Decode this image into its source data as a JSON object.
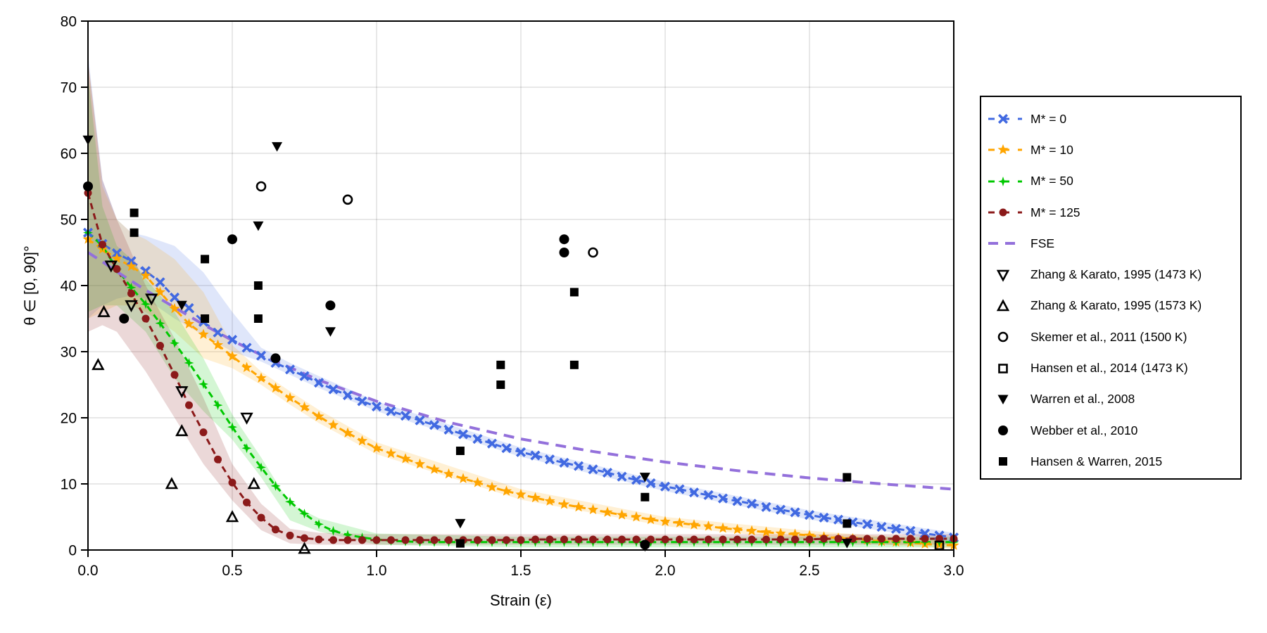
{
  "chart_data": {
    "type": "line",
    "xlabel": "Strain (ε)",
    "ylabel": "θ ∈ [0, 90]°",
    "xlim": [
      0,
      3
    ],
    "ylim": [
      0,
      80
    ],
    "xticks": [
      "0.0",
      "0.5",
      "1.0",
      "1.5",
      "2.0",
      "2.5",
      "3.0"
    ],
    "yticks": [
      "0",
      "10",
      "20",
      "30",
      "40",
      "50",
      "60",
      "70",
      "80"
    ],
    "grid": true,
    "legend_position": "right-outside",
    "model_x": [
      0,
      0.05,
      0.1,
      0.15,
      0.2,
      0.25,
      0.3,
      0.35,
      0.4,
      0.45,
      0.5,
      0.55,
      0.6,
      0.65,
      0.7,
      0.75,
      0.8,
      0.85,
      0.9,
      0.95,
      1.0,
      1.05,
      1.1,
      1.15,
      1.2,
      1.25,
      1.3,
      1.35,
      1.4,
      1.45,
      1.5,
      1.55,
      1.6,
      1.65,
      1.7,
      1.75,
      1.8,
      1.85,
      1.9,
      1.95,
      2.0,
      2.05,
      2.1,
      2.15,
      2.2,
      2.25,
      2.3,
      2.35,
      2.4,
      2.45,
      2.5,
      2.55,
      2.6,
      2.65,
      2.7,
      2.75,
      2.8,
      2.85,
      2.9,
      2.95,
      3.0
    ],
    "band_x": [
      0,
      0.05,
      0.1,
      0.15,
      0.2,
      0.3,
      0.4,
      0.5,
      0.6,
      0.7,
      0.8,
      1.0,
      1.5,
      2.0,
      2.5,
      3.0
    ],
    "series": [
      {
        "name": "M* = 0",
        "color": "#4169E1",
        "marker": "x-cross",
        "values": [
          48,
          46.3,
          44.9,
          43.7,
          42.2,
          40.5,
          38.2,
          36.6,
          34.5,
          32.9,
          31.8,
          30.6,
          29.4,
          28.3,
          27.3,
          26.3,
          25.3,
          24.3,
          23.4,
          22.5,
          21.7,
          21,
          20.3,
          19.6,
          18.9,
          18.2,
          17.5,
          16.8,
          16.1,
          15.4,
          14.8,
          14.3,
          13.7,
          13.2,
          12.7,
          12.2,
          11.7,
          11.1,
          10.6,
          10.1,
          9.6,
          9.2,
          8.7,
          8.3,
          7.8,
          7.4,
          7.0,
          6.5,
          6.1,
          5.7,
          5.3,
          4.9,
          4.6,
          4.2,
          3.9,
          3.5,
          3.2,
          2.9,
          2.5,
          2.2,
          1.9
        ],
        "band_upper": [
          75,
          56,
          50,
          48,
          47.5,
          46,
          42,
          36,
          30.6,
          28.3,
          26.3,
          22.5,
          15.5,
          10.3,
          6,
          2.6
        ],
        "band_lower": [
          35,
          37,
          38,
          38.5,
          38,
          35,
          32.5,
          30,
          28.5,
          26.5,
          24.5,
          21,
          14.1,
          8.9,
          4.6,
          1.2
        ]
      },
      {
        "name": "M* = 10",
        "color": "#FFA500",
        "marker": "star",
        "values": [
          47,
          45.5,
          44.1,
          42.9,
          41.5,
          39,
          36.5,
          34.2,
          32.6,
          31,
          29.3,
          27.6,
          26,
          24.5,
          23,
          21.6,
          20.2,
          18.9,
          17.7,
          16.5,
          15.4,
          14.6,
          13.8,
          13,
          12.2,
          11.5,
          10.8,
          10.2,
          9.5,
          8.9,
          8.4,
          7.9,
          7.4,
          6.9,
          6.5,
          6.1,
          5.7,
          5.3,
          5.0,
          4.6,
          4.3,
          4.1,
          3.8,
          3.6,
          3.3,
          3.1,
          2.9,
          2.7,
          2.5,
          2.4,
          2.2,
          2.0,
          1.8,
          1.7,
          1.5,
          1.3,
          1.2,
          1.1,
          0.9,
          0.8,
          0.7
        ],
        "band_upper": [
          74,
          55,
          50,
          48,
          47,
          44,
          39,
          31,
          27,
          24,
          21.2,
          16.3,
          9.2,
          5,
          2.9,
          1.3
        ],
        "band_lower": [
          35,
          36,
          37,
          37,
          36,
          33,
          29,
          27.5,
          25,
          22,
          19.2,
          14.5,
          7.6,
          3.6,
          1.5,
          0.2
        ]
      },
      {
        "name": "M* = 50",
        "color": "#00C800",
        "marker": "four-point-star",
        "values": [
          48,
          46,
          42.5,
          39.7,
          37.2,
          34.3,
          31.3,
          28.3,
          25.1,
          21.9,
          18.6,
          15.4,
          12.5,
          9.7,
          7.3,
          5.5,
          3.9,
          2.9,
          2.3,
          1.9,
          1.6,
          1.4,
          1.3,
          1.2,
          1.2,
          1.2,
          1.2,
          1.2,
          1.2,
          1.2,
          1.2,
          1.2,
          1.2,
          1.2,
          1.2,
          1.2,
          1.2,
          1.2,
          1.2,
          1.2,
          1.2,
          1.2,
          1.2,
          1.2,
          1.2,
          1.2,
          1.2,
          1.2,
          1.2,
          1.2,
          1.2,
          1.2,
          1.2,
          1.2,
          1.2,
          1.2,
          1.2,
          1.2,
          1.2,
          1.2,
          1.2
        ],
        "band_upper": [
          72,
          52,
          46,
          44,
          41,
          36,
          29,
          20.5,
          14,
          7,
          4.8,
          2.5,
          2,
          2,
          2,
          2
        ],
        "band_lower": [
          36,
          37,
          37,
          35,
          33,
          26,
          21,
          16.7,
          11,
          4.5,
          2.8,
          0.8,
          0.4,
          0.4,
          0.4,
          0.4
        ]
      },
      {
        "name": "M* = 125",
        "color": "#8B1A1A",
        "marker": "circle",
        "values": [
          54,
          46.2,
          42.5,
          38.8,
          35,
          30.9,
          26.5,
          21.9,
          17.8,
          13.7,
          10.2,
          7.2,
          4.9,
          3.1,
          2.2,
          1.8,
          1.6,
          1.5,
          1.5,
          1.5,
          1.5,
          1.5,
          1.5,
          1.5,
          1.5,
          1.5,
          1.5,
          1.5,
          1.5,
          1.5,
          1.5,
          1.6,
          1.6,
          1.6,
          1.6,
          1.6,
          1.6,
          1.6,
          1.6,
          1.6,
          1.6,
          1.6,
          1.6,
          1.6,
          1.6,
          1.6,
          1.6,
          1.6,
          1.6,
          1.6,
          1.6,
          1.7,
          1.7,
          1.7,
          1.7,
          1.7,
          1.7,
          1.7,
          1.7,
          1.7,
          1.7
        ],
        "band_upper": [
          74,
          56,
          50,
          45,
          40,
          32,
          23,
          13,
          7,
          3.2,
          2.6,
          2.4,
          2.4,
          2.4,
          2.4,
          2.4
        ],
        "band_lower": [
          33,
          34,
          33,
          30,
          27,
          20,
          13,
          7.5,
          3,
          1,
          0.8,
          0.8,
          0.8,
          0.8,
          0.8,
          0.8
        ]
      }
    ],
    "fse": {
      "name": "FSE",
      "color": "#9370DB",
      "x": [
        0,
        0.05,
        0.1,
        0.15,
        0.2,
        0.3,
        0.4,
        0.5,
        0.6,
        0.8,
        1.0,
        1.25,
        1.5,
        1.75,
        2.0,
        2.25,
        2.5,
        2.75,
        3.0
      ],
      "values": [
        45,
        43.6,
        42.1,
        40.7,
        39.3,
        36.7,
        34.1,
        31.7,
        29.5,
        25.7,
        22.5,
        19.3,
        16.8,
        14.9,
        13.3,
        12.0,
        10.9,
        10.0,
        9.2
      ]
    },
    "observations": [
      {
        "name": "Zhang & Karato, 1995 (1473 K)",
        "marker": "triangle-down-open",
        "points": [
          [
            0.08,
            43
          ],
          [
            0.15,
            37
          ],
          [
            0.22,
            38
          ],
          [
            0.325,
            24
          ],
          [
            0.55,
            20
          ]
        ]
      },
      {
        "name": "Zhang & Karato, 1995 (1573 K)",
        "marker": "triangle-up-open",
        "points": [
          [
            0.035,
            28
          ],
          [
            0.055,
            36
          ],
          [
            0.29,
            10
          ],
          [
            0.325,
            18
          ],
          [
            0.5,
            5
          ],
          [
            0.575,
            10
          ],
          [
            0.75,
            0.2
          ]
        ]
      },
      {
        "name": "Skemer et al., 2011 (1500 K)",
        "marker": "circle-open",
        "points": [
          [
            0.6,
            55
          ],
          [
            0.9,
            53
          ],
          [
            1.75,
            45
          ]
        ]
      },
      {
        "name": "Hansen et al., 2014 (1473 K)",
        "marker": "square-open",
        "points": [
          [
            2.95,
            0.7
          ]
        ]
      },
      {
        "name": "Warren et al., 2008",
        "marker": "triangle-down",
        "points": [
          [
            0,
            62
          ],
          [
            0.325,
            37
          ],
          [
            0.59,
            49
          ],
          [
            0.655,
            61
          ],
          [
            0.84,
            33
          ],
          [
            1.29,
            4
          ],
          [
            1.93,
            11
          ],
          [
            1.93,
            0.5
          ],
          [
            2.63,
            1
          ]
        ]
      },
      {
        "name": "Webber et al., 2010",
        "marker": "circle-filled",
        "points": [
          [
            0,
            55
          ],
          [
            0.125,
            35
          ],
          [
            0.5,
            47
          ],
          [
            0.65,
            29
          ],
          [
            0.84,
            37
          ],
          [
            1.65,
            47
          ],
          [
            1.65,
            45
          ],
          [
            1.93,
            0.8
          ]
        ]
      },
      {
        "name": "Hansen & Warren, 2015",
        "marker": "square-filled",
        "points": [
          [
            0.16,
            51
          ],
          [
            0.16,
            48
          ],
          [
            0.405,
            44
          ],
          [
            0.405,
            35
          ],
          [
            0.59,
            40
          ],
          [
            0.59,
            35
          ],
          [
            1.29,
            15
          ],
          [
            1.29,
            1
          ],
          [
            1.43,
            28
          ],
          [
            1.43,
            25
          ],
          [
            1.685,
            39
          ],
          [
            1.685,
            28
          ],
          [
            1.93,
            8
          ],
          [
            2.63,
            11
          ],
          [
            2.63,
            4
          ]
        ]
      }
    ]
  }
}
